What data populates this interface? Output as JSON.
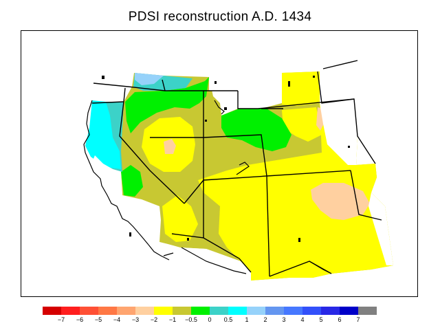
{
  "title": "PDSI reconstruction A.D. 1434",
  "legend": {
    "colors": [
      "#d50000",
      "#ff1e1e",
      "#ff5035",
      "#ff7845",
      "#ffa570",
      "#ffd0a0",
      "#ffff00",
      "#c8c832",
      "#00f000",
      "#3cd2c8",
      "#00ffff",
      "#96d2fa",
      "#6496f0",
      "#4678ff",
      "#3250fa",
      "#2828e6",
      "#0000c8",
      "#808080"
    ],
    "ticks": [
      "−7",
      "−6",
      "−5",
      "−4",
      "−3",
      "−2",
      "−1",
      "−0.5",
      "0",
      "0.5",
      "1",
      "2",
      "3",
      "4",
      "5",
      "6",
      "7"
    ]
  },
  "colors": {
    "dark_olive": "#c8c832",
    "yellow": "#ffff00",
    "green": "#00f000",
    "cyan": "#00ffff",
    "teal": "#3cd2c8",
    "light_blue": "#96d2fa",
    "peach": "#ffd0a0"
  }
}
